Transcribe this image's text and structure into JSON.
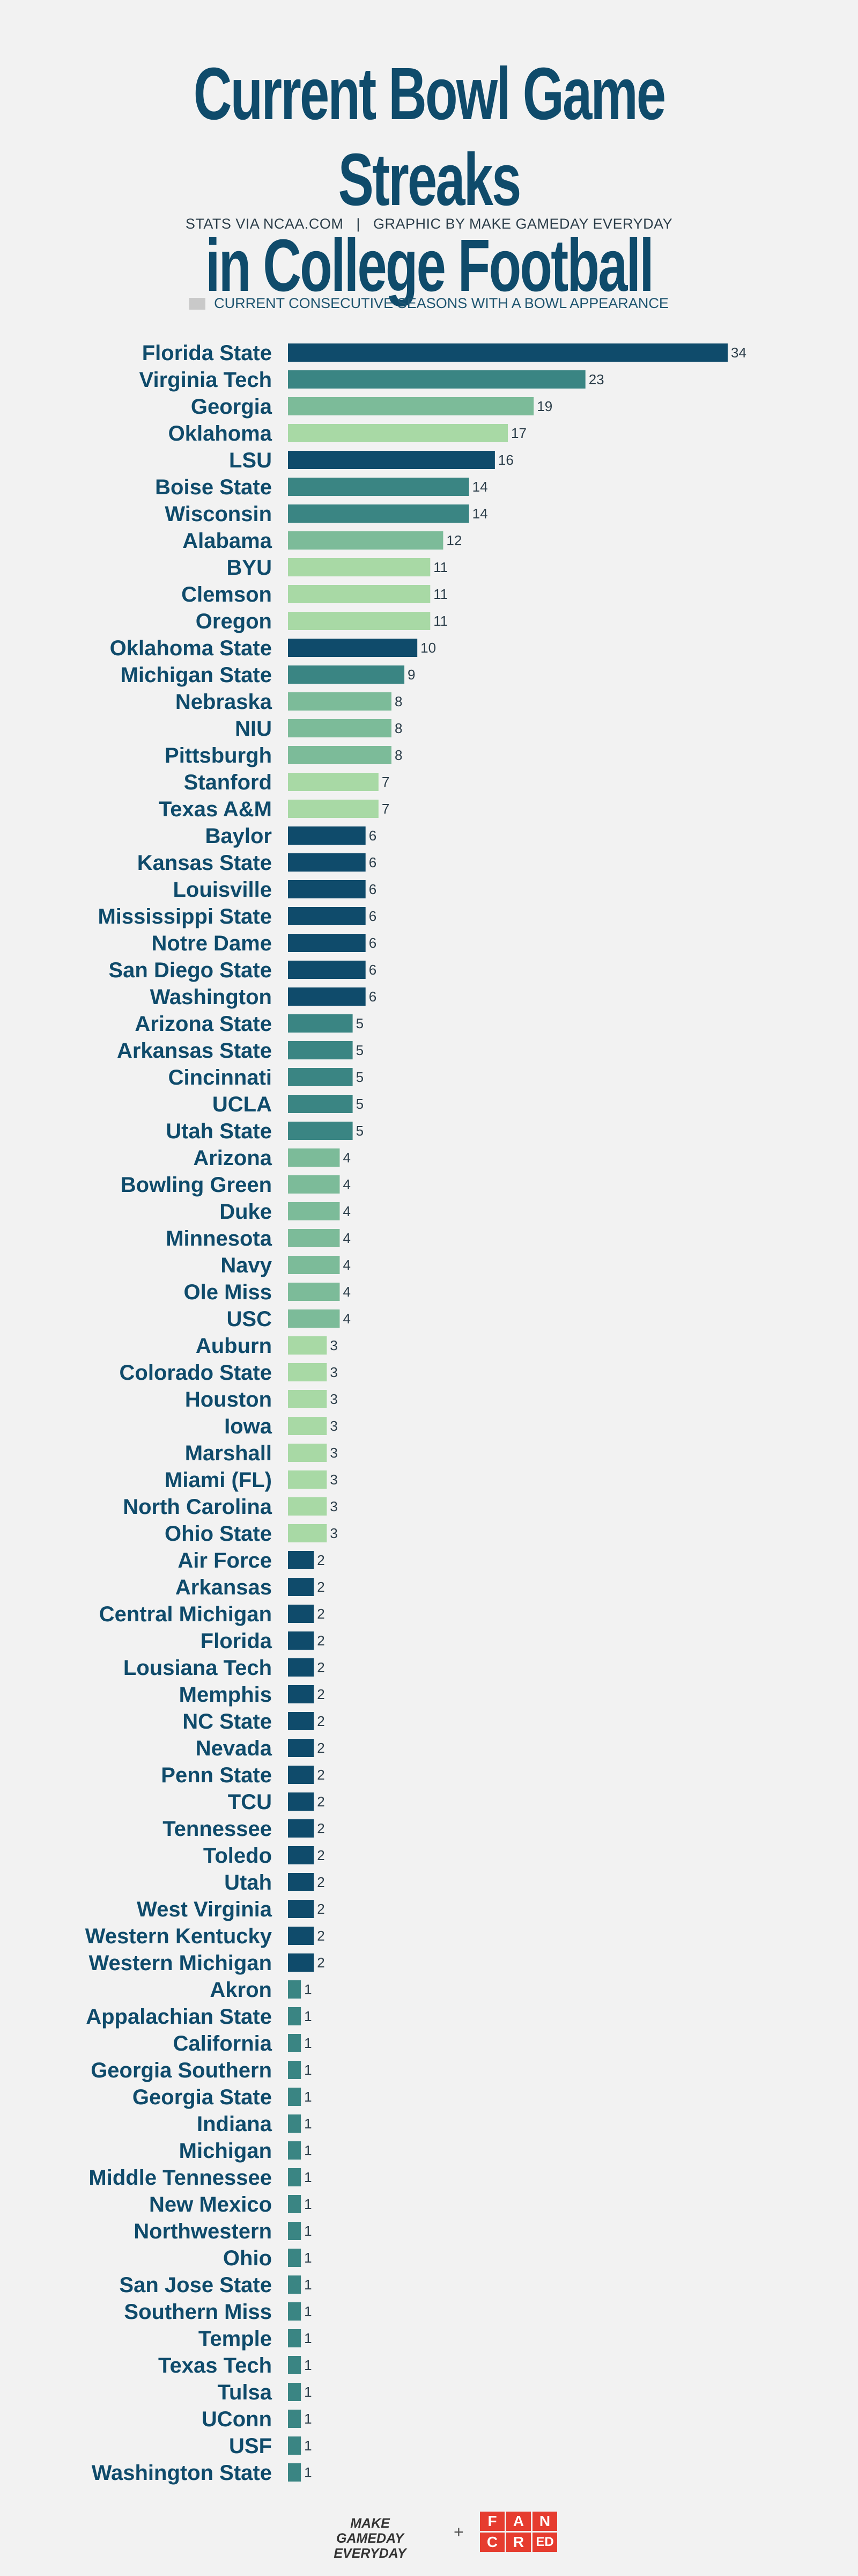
{
  "title_line1": "Current Bowl Game Streaks",
  "title_line2": "in College Football",
  "subtitle": "STATS VIA NCAA.COM   |   GRAPHIC BY MAKE GAMEDAY EVERYDAY",
  "legend_label": "CURRENT CONSECUTIVE SEASONS WITH A BOWL APPEARANCE",
  "footer": {
    "brand_line1": "MAKE GAMEDAY",
    "brand_line2": "EVERYDAY",
    "plus": "+",
    "logo_letters": [
      "F",
      "A",
      "N",
      "C",
      "R",
      "E",
      "D"
    ]
  },
  "colors": {
    "background": "#f2f2f2",
    "title": "#0f4b6b",
    "palette": [
      "#0f4b6b",
      "#3a8583",
      "#7cbb99",
      "#a8d9a5"
    ],
    "logo_red": "#e63c2f"
  },
  "chart_data": {
    "type": "bar",
    "orientation": "horizontal",
    "legend": "CURRENT CONSECUTIVE SEASONS WITH A BOWL APPEARANCE",
    "categories": [
      "Florida State",
      "Virginia Tech",
      "Georgia",
      "Oklahoma",
      "LSU",
      "Boise State",
      "Wisconsin",
      "Alabama",
      "BYU",
      "Clemson",
      "Oregon",
      "Oklahoma State",
      "Michigan State",
      "Nebraska",
      "NIU",
      "Pittsburgh",
      "Stanford",
      "Texas A&M",
      "Baylor",
      "Kansas State",
      "Louisville",
      "Mississippi State",
      "Notre Dame",
      "San Diego State",
      "Washington",
      "Arizona State",
      "Arkansas State",
      "Cincinnati",
      "UCLA",
      "Utah State",
      "Arizona",
      "Bowling Green",
      "Duke",
      "Minnesota",
      "Navy",
      "Ole Miss",
      "USC",
      "Auburn",
      "Colorado State",
      "Houston",
      "Iowa",
      "Marshall",
      "Miami (FL)",
      "North Carolina",
      "Ohio State",
      "Air Force",
      "Arkansas",
      "Central Michigan",
      "Florida",
      "Lousiana Tech",
      "Memphis",
      "NC State",
      "Nevada",
      "Penn State",
      "TCU",
      "Tennessee",
      "Toledo",
      "Utah",
      "West Virginia",
      "Western Kentucky",
      "Western Michigan",
      "Akron",
      "Appalachian State",
      "California",
      "Georgia Southern",
      "Georgia State",
      "Indiana",
      "Michigan",
      "Middle Tennessee",
      "New Mexico",
      "Northwestern",
      "Ohio",
      "San Jose State",
      "Southern Miss",
      "Temple",
      "Texas Tech",
      "Tulsa",
      "UConn",
      "USF",
      "Washington State"
    ],
    "values": [
      34,
      23,
      19,
      17,
      16,
      14,
      14,
      12,
      11,
      11,
      11,
      10,
      9,
      8,
      8,
      8,
      7,
      7,
      6,
      6,
      6,
      6,
      6,
      6,
      6,
      5,
      5,
      5,
      5,
      5,
      4,
      4,
      4,
      4,
      4,
      4,
      4,
      3,
      3,
      3,
      3,
      3,
      3,
      3,
      3,
      2,
      2,
      2,
      2,
      2,
      2,
      2,
      2,
      2,
      2,
      2,
      2,
      2,
      2,
      2,
      2,
      1,
      1,
      1,
      1,
      1,
      1,
      1,
      1,
      1,
      1,
      1,
      1,
      1,
      1,
      1,
      1,
      1,
      1,
      1
    ],
    "bar_colors": [
      "#0f4b6b",
      "#3a8583",
      "#7cbb99",
      "#a8d9a5",
      "#0f4b6b",
      "#3a8583",
      "#3a8583",
      "#7cbb99",
      "#a8d9a5",
      "#a8d9a5",
      "#a8d9a5",
      "#0f4b6b",
      "#3a8583",
      "#7cbb99",
      "#7cbb99",
      "#7cbb99",
      "#a8d9a5",
      "#a8d9a5",
      "#0f4b6b",
      "#0f4b6b",
      "#0f4b6b",
      "#0f4b6b",
      "#0f4b6b",
      "#0f4b6b",
      "#0f4b6b",
      "#3a8583",
      "#3a8583",
      "#3a8583",
      "#3a8583",
      "#3a8583",
      "#7cbb99",
      "#7cbb99",
      "#7cbb99",
      "#7cbb99",
      "#7cbb99",
      "#7cbb99",
      "#7cbb99",
      "#a8d9a5",
      "#a8d9a5",
      "#a8d9a5",
      "#a8d9a5",
      "#a8d9a5",
      "#a8d9a5",
      "#a8d9a5",
      "#a8d9a5",
      "#0f4b6b",
      "#0f4b6b",
      "#0f4b6b",
      "#0f4b6b",
      "#0f4b6b",
      "#0f4b6b",
      "#0f4b6b",
      "#0f4b6b",
      "#0f4b6b",
      "#0f4b6b",
      "#0f4b6b",
      "#0f4b6b",
      "#0f4b6b",
      "#0f4b6b",
      "#0f4b6b",
      "#0f4b6b",
      "#3a8583",
      "#3a8583",
      "#3a8583",
      "#3a8583",
      "#3a8583",
      "#3a8583",
      "#3a8583",
      "#3a8583",
      "#3a8583",
      "#3a8583",
      "#3a8583",
      "#3a8583",
      "#3a8583",
      "#3a8583",
      "#3a8583",
      "#3a8583",
      "#3a8583",
      "#3a8583",
      "#3a8583"
    ],
    "xlim": [
      0,
      34
    ],
    "grid": false
  }
}
